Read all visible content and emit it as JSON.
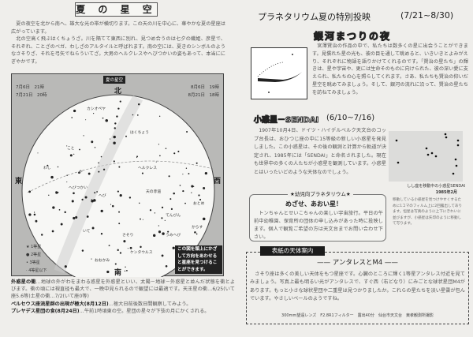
{
  "left": {
    "title": "夏 の 星 空",
    "intro": [
      "夏の夜空を北から南へ、雄大な光の帯が横切ります。この天の川を中心に、華やかな夏の星座は広がっています。",
      "北の空高く飛ぶはくちょうざ。川を隔てて東西に別れ、見つめ合うのは七夕の織姫、彦星で、それぞれ、ことざのベガ、わしざのアルタイルと呼ばれます。南の空には、夏きのシンボルのようなさそりざ、それを弓矢でねらういてざ。大男のヘルクレスやへびつかいの姿もあって、本当ににぎやかです。"
    ],
    "chart": {
      "label": "夏の星空",
      "times_left": [
        "7月6日　21時",
        "7月21日　20時"
      ],
      "times_right": [
        "8月6日　19時",
        "8月21日　18時"
      ],
      "north": "北",
      "south": "南",
      "east": "東",
      "west": "西",
      "constellations": [
        "カシオペヤ",
        "はくちょう",
        "こと",
        "わし",
        "や",
        "へび",
        "へびつかい",
        "ヘルクレス",
        "天の赤道",
        "てんびん",
        "おとめ",
        "からす",
        "うみへび",
        "さそり",
        "いて",
        "おおかみ",
        "ケンタウルス"
      ],
      "legend": [
        "1等星",
        "2等星",
        "3等星",
        "4等星以下"
      ],
      "note": "この図を頭上にかざして方向をあわせると星座を見つけることができます。"
    },
    "items": [
      {
        "title": "外惑星の衝",
        "text": "…地球の外がわをまわる惑星を外惑星といい、太陽－地球－外惑星と並んだ状態を衝とよびます。衝の頃には視直径も最大で、一晩中見られるので観望には最適です。天王星の衝…6/25(いて座5.6等)土星の衝…7/2(いて座0等)"
      },
      {
        "title": "ペルセウス座流星群の出現が極大(8月12日)",
        "text": "…極大日前後数日間観察してみよう。"
      },
      {
        "title": "プレヤデス星団の食(8月24日)",
        "text": "…午前1時頃東の空。星団の星々が下弦の月にかくされる。"
      }
    ]
  },
  "right": {
    "heading": "プラネタリウム夏の特別投映",
    "heading_dates": "(7/21~8/30)",
    "program_title": "銀河まつりの夜",
    "program_text": "宮澤賢治の作品の中で、私たちは数多くの星に出会うことができます。見慣れた星の光も、彼の目を通して眺めると、いきいきとよみがえり、それぞれに物語を語りかけてくれるのです。「賢治の星たち」の輝きは、星や宇宙や、更には生命そのものに向けられた、彼の深い愛に支えられ、私たちの心を照らしてくれます。さあ、私たちも賢治の仰いだ星空を眺めてみましょう。そして、銀河の流れに沿って、賢治の星たちを訪ねてみましょう。",
    "sendai_title": "小惑星－SENDAI",
    "sendai_dates": "(6/10~7/16)",
    "sendai_text": "1907年10月4日、ドイツ・ハイデルベルク天文台のコップ台長は、おひつじ座の中に15等級の新しい小惑星を発見しました。この小惑星は、その後の観測と計算から軌道が決定され、1985年には「SENDAI」と命名されました。現在も世界中の多くの人たちが小惑星を観測しています。小惑星とはいったいどのような天体なのでしょう。",
    "photo_caption": "しし座を移動中の小惑星SENDAI",
    "photo_date": "1985年2月",
    "photo_note": "移動している小惑星を見つけやすくするために1コマのフィルム上に2回露出してあります。恒星は写真のように上下にきれいに並びますが、小惑星は矢印のように移動して写ります。",
    "kids": {
      "label": "★幼児向プラネタリウム★",
      "title": "めざせ、あおい星！",
      "text": "トンちゃんとせいこちゃんの楽しい宇宙旅行。平日の午前中幼稚園、保育所の団体の申し込みがあった時に投映します。個人で観覧ご希望の方は天文台までお問い合わせ下さい。"
    },
    "cover": {
      "tab": "表紙の天体案内",
      "title": "アンタレスとM4",
      "text": "さそり座は多くの美しい天体をもつ星座です。心臓のところに輝く1等星アンタレス付近を見てみましょう。写真上最も明るい光がアンタレスで、すぐ西（右どなり）にみごとな球状星団M4があります。もっと小さな球状星団や二重星は見つかりましたか。これらの星たちを淡い星雲が包んでいます。やさしいベールのようですね。",
      "credit": "300mm望遠レンズ　F2.8R1フィルター　露出40分　仙台市天文台　東孝観測所撮影"
    }
  }
}
